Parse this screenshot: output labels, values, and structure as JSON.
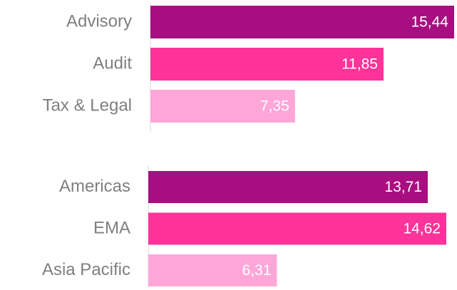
{
  "chart_data": [
    {
      "type": "bar",
      "orientation": "horizontal",
      "categories": [
        "Advisory",
        "Audit",
        "Tax & Legal"
      ],
      "values": [
        15.44,
        11.85,
        7.35
      ],
      "value_labels": [
        "15,44",
        "11,85",
        "7,35"
      ],
      "colors": [
        "#a70f80",
        "#ff3399",
        "#ffa6d9"
      ]
    },
    {
      "type": "bar",
      "orientation": "horizontal",
      "categories": [
        "Americas",
        "EMA",
        "Asia Pacific"
      ],
      "values": [
        13.71,
        14.62,
        6.31
      ],
      "value_labels": [
        "13,71",
        "14,62",
        "6,31"
      ],
      "colors": [
        "#a70f80",
        "#ff3399",
        "#ffa6d9"
      ]
    }
  ]
}
